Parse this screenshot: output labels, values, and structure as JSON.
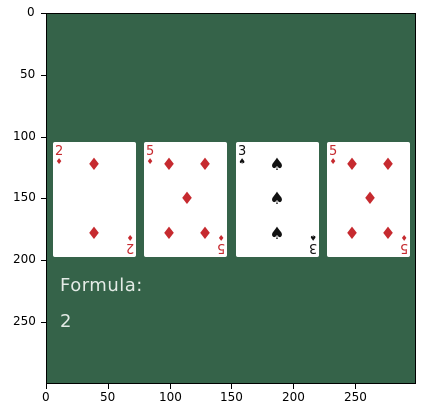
{
  "table": {
    "felt_color": "#356349",
    "cards": [
      {
        "rank": "2",
        "suit": "diamond",
        "suit_symbol": "♦",
        "color": "red"
      },
      {
        "rank": "5",
        "suit": "diamond",
        "suit_symbol": "♦",
        "color": "red"
      },
      {
        "rank": "3",
        "suit": "spade",
        "suit_symbol": "♠",
        "color": "black"
      },
      {
        "rank": "5",
        "suit": "diamond",
        "suit_symbol": "♦",
        "color": "red"
      }
    ],
    "formula_label": "Formula:",
    "formula_value": "2"
  },
  "axes": {
    "x_ticks": [
      "0",
      "50",
      "100",
      "150",
      "200",
      "250"
    ],
    "y_ticks": [
      "0",
      "50",
      "100",
      "150",
      "200",
      "250"
    ]
  },
  "colors": {
    "red_suit": "#c62a2f",
    "black_suit": "#111111",
    "text_on_felt": "#e4ebe6"
  }
}
